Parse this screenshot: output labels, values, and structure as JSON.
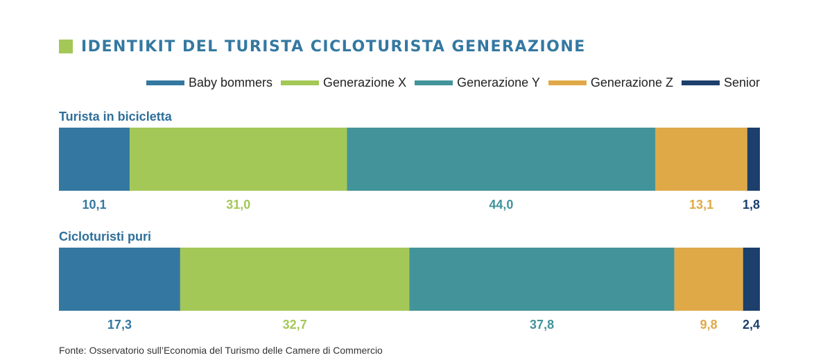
{
  "title": "IDENTIKIT DEL TURISTA CICLOTURISTA GENERAZIONE",
  "source": "Fonte: Osservatorio sull’Economia del Turismo delle Camere di Commercio",
  "colors": {
    "title_square": "#a3c857",
    "title": "#3478a1",
    "row_label": "#2e6f9a"
  },
  "chart_data": {
    "type": "bar",
    "orientation": "horizontal",
    "stacked": true,
    "categories": [
      "Turista in bicicletta",
      "Cicloturisti puri"
    ],
    "series": [
      {
        "name": "Baby bommers",
        "color": "#3478a1",
        "values": [
          10.1,
          17.3
        ],
        "labels": [
          "10,1",
          "17,3"
        ]
      },
      {
        "name": "Generazione X",
        "color": "#a3c857",
        "values": [
          31.0,
          32.7
        ],
        "labels": [
          "31,0",
          "32,7"
        ]
      },
      {
        "name": "Generazione Y",
        "color": "#42949a",
        "values": [
          44.0,
          37.8
        ],
        "labels": [
          "44,0",
          "37,8"
        ]
      },
      {
        "name": "Generazione Z",
        "color": "#dfa948",
        "values": [
          13.1,
          9.8
        ],
        "labels": [
          "13,1",
          "9,8"
        ]
      },
      {
        "name": "Senior",
        "color": "#1c3f6c",
        "values": [
          1.8,
          2.4
        ],
        "labels": [
          "1,8",
          "2,4"
        ]
      }
    ],
    "legend_position": "top-right",
    "grid": false
  }
}
